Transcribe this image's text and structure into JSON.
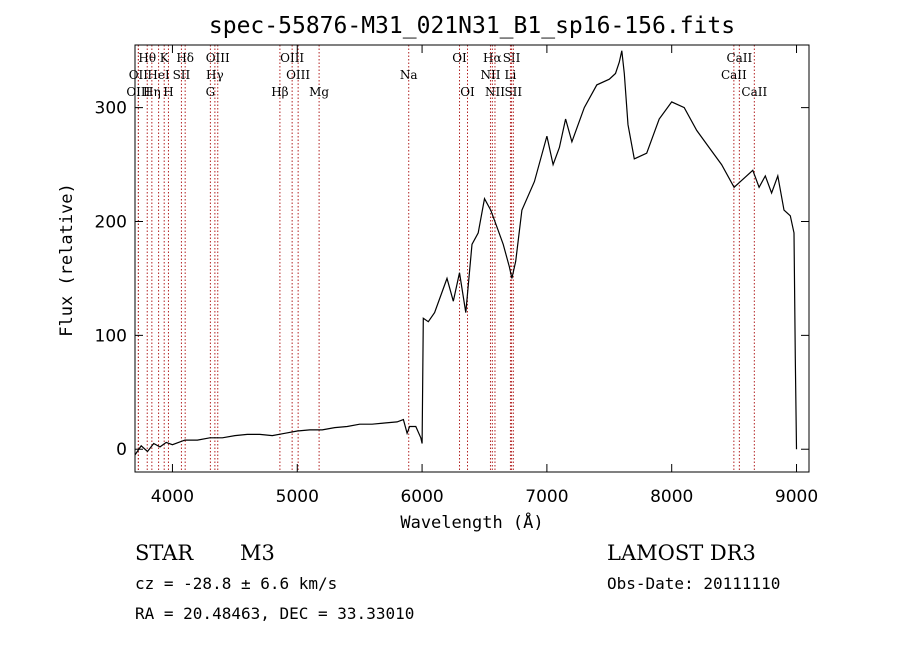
{
  "chart_data": {
    "type": "line",
    "title": "spec-55876-M31_021N31_B1_sp16-156.fits",
    "xlabel": "Wavelength (Å)",
    "ylabel": "Flux (relative)",
    "xlim": [
      3700,
      9100
    ],
    "ylim": [
      -20,
      355
    ],
    "xticks": [
      4000,
      5000,
      6000,
      7000,
      8000,
      9000
    ],
    "yticks": [
      0,
      100,
      200,
      300
    ],
    "line_color": "#000000",
    "marker_color": "#b22222",
    "series": [
      {
        "name": "flux",
        "x": [
          3700,
          3750,
          3800,
          3850,
          3900,
          3950,
          4000,
          4100,
          4200,
          4300,
          4400,
          4500,
          4600,
          4700,
          4800,
          4900,
          5000,
          5100,
          5200,
          5300,
          5400,
          5500,
          5600,
          5700,
          5800,
          5850,
          5880,
          5900,
          5950,
          5990,
          6000,
          6010,
          6050,
          6100,
          6150,
          6200,
          6250,
          6300,
          6350,
          6400,
          6450,
          6500,
          6550,
          6600,
          6650,
          6700,
          6720,
          6750,
          6800,
          6900,
          7000,
          7050,
          7100,
          7150,
          7200,
          7300,
          7400,
          7500,
          7550,
          7580,
          7600,
          7620,
          7650,
          7700,
          7800,
          7900,
          8000,
          8100,
          8200,
          8300,
          8400,
          8500,
          8550,
          8600,
          8650,
          8700,
          8750,
          8800,
          8850,
          8900,
          8950,
          8980,
          8990,
          9000
        ],
        "y": [
          -5,
          3,
          -2,
          5,
          2,
          6,
          4,
          8,
          8,
          10,
          10,
          12,
          13,
          13,
          12,
          14,
          16,
          17,
          17,
          19,
          20,
          22,
          22,
          23,
          24,
          26,
          14,
          20,
          20,
          10,
          5,
          115,
          112,
          120,
          135,
          150,
          130,
          155,
          120,
          180,
          190,
          220,
          210,
          195,
          180,
          160,
          150,
          165,
          210,
          235,
          275,
          250,
          265,
          290,
          270,
          300,
          320,
          325,
          330,
          340,
          350,
          330,
          285,
          255,
          260,
          290,
          305,
          300,
          280,
          265,
          250,
          230,
          235,
          240,
          245,
          230,
          240,
          225,
          240,
          210,
          205,
          190,
          80,
          0
        ]
      }
    ],
    "line_markers": [
      {
        "label": "Hθ",
        "x": 3798,
        "row": 1
      },
      {
        "label": "OII",
        "x": 3727,
        "row": 2
      },
      {
        "label": "OIII",
        "x": 3727,
        "row": 3
      },
      {
        "label": "HeI",
        "x": 3889,
        "row": 2
      },
      {
        "label": "Hη",
        "x": 3835,
        "row": 3
      },
      {
        "label": "K",
        "x": 3934,
        "row": 1
      },
      {
        "label": "H",
        "x": 3968,
        "row": 3
      },
      {
        "label": "SII",
        "x": 4072,
        "row": 2
      },
      {
        "label": "Hδ",
        "x": 4102,
        "row": 1
      },
      {
        "label": "OIII",
        "x": 4363,
        "row": 1
      },
      {
        "label": "Hγ",
        "x": 4340,
        "row": 2
      },
      {
        "label": "G",
        "x": 4304,
        "row": 3
      },
      {
        "label": "Hβ",
        "x": 4861,
        "row": 3
      },
      {
        "label": "OIII",
        "x": 4959,
        "row": 1
      },
      {
        "label": "OIII",
        "x": 5007,
        "row": 2
      },
      {
        "label": "Mg",
        "x": 5175,
        "row": 3
      },
      {
        "label": "Na",
        "x": 5893,
        "row": 2
      },
      {
        "label": "OI",
        "x": 6300,
        "row": 1
      },
      {
        "label": "OI",
        "x": 6364,
        "row": 3
      },
      {
        "label": "Hα",
        "x": 6563,
        "row": 1
      },
      {
        "label": "NII",
        "x": 6548,
        "row": 2
      },
      {
        "label": "NII",
        "x": 6584,
        "row": 3
      },
      {
        "label": "SII",
        "x": 6717,
        "row": 1
      },
      {
        "label": "Li",
        "x": 6708,
        "row": 2
      },
      {
        "label": "SII",
        "x": 6731,
        "row": 3
      },
      {
        "label": "CaII",
        "x": 8542,
        "row": 1
      },
      {
        "label": "CaII",
        "x": 8498,
        "row": 2
      },
      {
        "label": "CaII",
        "x": 8662,
        "row": 3
      }
    ]
  },
  "footer": {
    "object_class": "STAR",
    "subclass": "M3",
    "survey": "LAMOST DR3",
    "redshift": "cz = -28.8 ± 6.6 km/s",
    "obs_date": "Obs-Date: 20111110",
    "coords": "RA =  20.48463, DEC =  33.33010"
  }
}
